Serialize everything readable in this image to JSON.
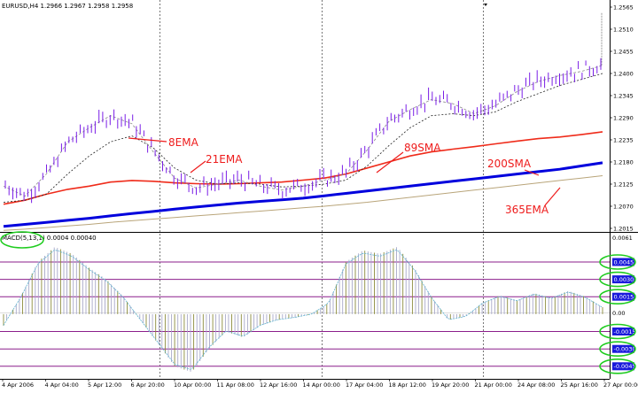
{
  "header": {
    "price_title": "EURUSD,H4  1.2966 1.2967 1.2958 1.2958",
    "macd_title": "MACD(5,13,1) 0.0004 0.00040"
  },
  "price_axis": [
    "1.2565",
    "1.2510",
    "1.2455",
    "1.2400",
    "1.2345",
    "1.2290",
    "1.2235",
    "1.2180",
    "1.2125",
    "1.2070",
    "1.2015"
  ],
  "macd_axis": [
    "0.0061",
    "0.00"
  ],
  "time_axis": [
    "4 Apr 2006",
    "4 Apr 04:00",
    "5 Apr 12:00",
    "6 Apr 20:00",
    "10 Apr 00:00",
    "11 Apr 08:00",
    "12 Apr 16:00",
    "14 Apr 00:00",
    "17 Apr 04:00",
    "18 Apr 12:00",
    "19 Apr 20:00",
    "21 Apr 00:00",
    "24 Apr 08:00",
    "25 Apr 16:00",
    "27 Apr 00:00"
  ],
  "annotations": {
    "ema8": "8EMA",
    "ema21": "21EMA",
    "sma89": "89SMA",
    "sma200": "200SMA",
    "ema365": "365EMA"
  },
  "levels": [
    "0.0045",
    "0.0030",
    "0.0015",
    "-0.0015",
    "-0.0030",
    "-0.0045"
  ],
  "colors": {
    "candle": "#7a1ee6",
    "ema8": "#8a8a8a",
    "ema21": "#222222",
    "sma89": "#ef2b1a",
    "sma200": "#0000dd",
    "ema365": "#b9a57a",
    "level_line": "#8b1e8b",
    "annotation": "#ee1c1c",
    "highlight": "#1fcc1f",
    "macd_hist": "#8b8b3a",
    "macd_signal": "#5fb3d0",
    "badge": "#1a1adc"
  },
  "chart_data": {
    "type": "line",
    "symbol": "EURUSD",
    "timeframe": "H4",
    "y_range": [
      1.2015,
      1.2565
    ],
    "macd_range": [
      -0.0052,
      0.0061
    ],
    "series": [
      {
        "name": "8EMA",
        "values": [
          1.212,
          1.2095,
          1.215,
          1.223,
          1.2265,
          1.2295,
          1.2275,
          1.2205,
          1.214,
          1.2115,
          1.2125,
          1.2135,
          1.212,
          1.211,
          1.212,
          1.2135,
          1.215,
          1.221,
          1.228,
          1.231,
          1.2335,
          1.2325,
          1.23,
          1.232,
          1.2355,
          1.238,
          1.2395,
          1.2405,
          1.242
        ]
      },
      {
        "name": "21EMA",
        "values": [
          1.208,
          1.2085,
          1.21,
          1.215,
          1.2195,
          1.223,
          1.2245,
          1.2215,
          1.2165,
          1.2135,
          1.2125,
          1.2128,
          1.2125,
          1.2118,
          1.212,
          1.2125,
          1.2135,
          1.217,
          1.222,
          1.2265,
          1.2295,
          1.23,
          1.2295,
          1.2305,
          1.233,
          1.235,
          1.237,
          1.2385,
          1.24
        ]
      },
      {
        "name": "89SMA",
        "values": [
          1.2075,
          1.2085,
          1.21,
          1.2112,
          1.212,
          1.213,
          1.2134,
          1.2132,
          1.2128,
          1.2126,
          1.2125,
          1.2126,
          1.2128,
          1.213,
          1.2135,
          1.214,
          1.215,
          1.2165,
          1.218,
          1.2195,
          1.2205,
          1.2212,
          1.2218,
          1.2225,
          1.2232,
          1.2238,
          1.2242,
          1.2248,
          1.2255
        ]
      },
      {
        "name": "200SMA",
        "values": [
          1.202,
          1.2025,
          1.203,
          1.2035,
          1.204,
          1.2046,
          1.2052,
          1.2057,
          1.2063,
          1.2068,
          1.2073,
          1.2078,
          1.2082,
          1.2086,
          1.209,
          1.2096,
          1.2102,
          1.2108,
          1.2114,
          1.212,
          1.2126,
          1.2132,
          1.2138,
          1.2144,
          1.215,
          1.2156,
          1.2162,
          1.217,
          1.2178
        ]
      },
      {
        "name": "365EMA",
        "values": [
          1.201,
          1.2013,
          1.2017,
          1.2021,
          1.2025,
          1.203,
          1.2034,
          1.2038,
          1.2042,
          1.2046,
          1.205,
          1.2054,
          1.2058,
          1.2062,
          1.2066,
          1.207,
          1.2075,
          1.208,
          1.2086,
          1.2092,
          1.2098,
          1.2104,
          1.211,
          1.2116,
          1.2122,
          1.2128,
          1.2134,
          1.214,
          1.2146
        ]
      }
    ],
    "macd_histogram": [
      -0.001,
      0.0015,
      0.0045,
      0.0058,
      0.0052,
      0.004,
      0.003,
      0.0015,
      -0.0005,
      -0.0025,
      -0.0045,
      -0.005,
      -0.003,
      -0.0015,
      -0.002,
      -0.001,
      -0.0005,
      -0.0003,
      0.0,
      0.001,
      0.0045,
      0.0055,
      0.0052,
      0.0058,
      0.004,
      0.0015,
      -0.0005,
      -0.0002,
      0.001,
      0.0016,
      0.0012,
      0.0018,
      0.0014,
      0.002,
      0.0015,
      0.0006
    ]
  }
}
